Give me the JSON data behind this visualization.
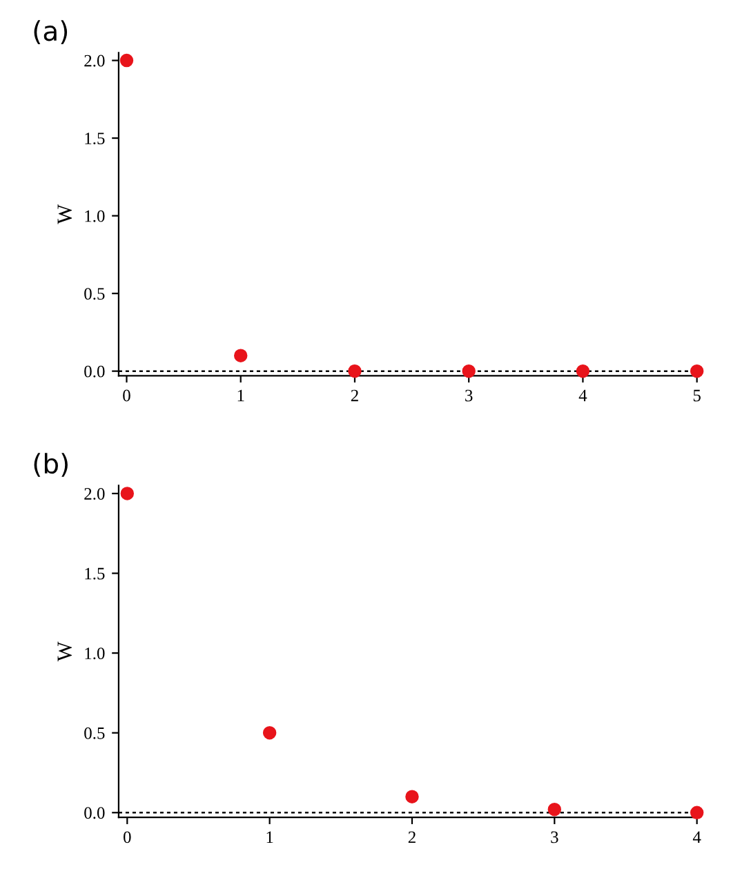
{
  "chart_data": [
    {
      "type": "scatter",
      "title": "(a)",
      "ylabel": "W",
      "x": [
        0,
        1,
        2,
        3,
        4,
        5
      ],
      "series": [
        {
          "color": "#e8141b",
          "values": [
            2.0,
            0.1,
            0.0,
            0.0,
            0.0,
            0.0
          ]
        }
      ],
      "xlim": [
        -0.07,
        5
      ],
      "ylim": [
        -0.03,
        2.05
      ],
      "xticks": [
        0,
        1,
        2,
        3,
        4,
        5
      ],
      "yticks": [
        {
          "value": 0,
          "label": "0.0"
        },
        {
          "value": 0.5,
          "label": "0.5"
        },
        {
          "value": 1,
          "label": "1.0"
        },
        {
          "value": 1.5,
          "label": "1.5"
        },
        {
          "value": 2,
          "label": "2.0"
        }
      ],
      "ref_lines": [
        {
          "axis": "y",
          "value": 0,
          "color": "#000000",
          "line_style": "dotted"
        }
      ],
      "marker": "circle",
      "grid": false
    },
    {
      "type": "scatter",
      "title": "(b)",
      "ylabel": "W",
      "x": [
        0,
        1,
        2,
        3,
        4
      ],
      "series": [
        {
          "color": "#e8141b",
          "values": [
            2.0,
            0.5,
            0.1,
            0.02,
            0.0
          ]
        }
      ],
      "xlim": [
        -0.06,
        4
      ],
      "ylim": [
        -0.03,
        2.05
      ],
      "xticks": [
        0,
        1,
        2,
        3,
        4
      ],
      "yticks": [
        {
          "value": 0,
          "label": "0.0"
        },
        {
          "value": 0.5,
          "label": "0.5"
        },
        {
          "value": 1,
          "label": "1.0"
        },
        {
          "value": 1.5,
          "label": "1.5"
        },
        {
          "value": 2,
          "label": "2.0"
        }
      ],
      "ref_lines": [
        {
          "axis": "y",
          "value": 0,
          "color": "#000000",
          "line_style": "dotted"
        }
      ],
      "marker": "circle",
      "grid": false
    }
  ]
}
